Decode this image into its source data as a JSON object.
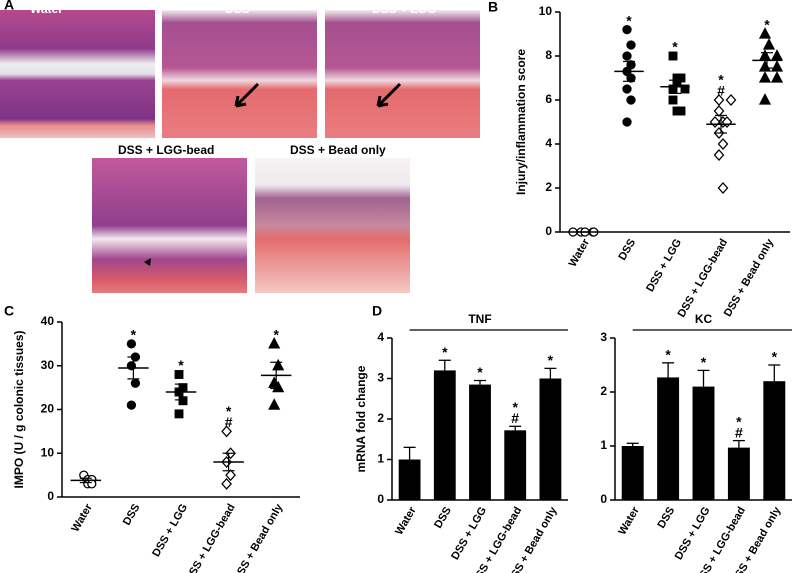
{
  "panel_labels": [
    "A",
    "B",
    "C",
    "D"
  ],
  "histology": [
    {
      "label": "Water"
    },
    {
      "label": "DSS"
    },
    {
      "label": "DSS + LGG"
    },
    {
      "label": "DSS + LGG-bead"
    },
    {
      "label": "DSS + Bead only"
    }
  ],
  "chart_data": [
    {
      "type": "dot",
      "ylabel": "Injury/inflammation score",
      "categories": [
        "Water",
        "DSS",
        "DSS + LGG",
        "DSS + LGG-bead",
        "DSS + Bead only"
      ],
      "ylim": [
        0,
        10
      ],
      "yticks": [
        0,
        2,
        4,
        6,
        8,
        10
      ],
      "color": "#000000",
      "groups": [
        {
          "marker": "circle",
          "filled": false,
          "points": [
            0,
            0,
            0,
            0,
            0
          ],
          "mean": 0,
          "error": 0,
          "annotations": []
        },
        {
          "marker": "circle",
          "filled": true,
          "points": [
            9.2,
            8.5,
            8.0,
            7.6,
            7.3,
            7.0,
            6.5,
            6.0,
            5.0
          ],
          "mean": 7.3,
          "error": 0.45,
          "annotations": [
            "*"
          ]
        },
        {
          "marker": "square",
          "filled": true,
          "points": [
            8.0,
            7.0,
            7.0,
            6.8,
            6.5,
            6.5,
            6.0,
            5.5,
            5.5
          ],
          "mean": 6.6,
          "error": 0.3,
          "annotations": [
            "*"
          ]
        },
        {
          "marker": "diamond",
          "filled": false,
          "points": [
            6.0,
            6.0,
            5.5,
            5.0,
            5.0,
            5.0,
            4.5,
            4.0,
            3.5,
            2.0
          ],
          "mean": 4.9,
          "error": 0.4,
          "annotations": [
            "*",
            "#"
          ]
        },
        {
          "marker": "triangle",
          "filled": true,
          "points": [
            9.0,
            8.5,
            8.0,
            8.0,
            7.5,
            7.5,
            7.0,
            7.0,
            6.0
          ],
          "mean": 7.8,
          "error": 0.35,
          "annotations": [
            "*"
          ]
        }
      ]
    },
    {
      "type": "dot",
      "ylabel": "IMPO (U / g colonic tissues)",
      "categories": [
        "Water",
        "DSS",
        "DSS + LGG",
        "DSS + LGG-bead",
        "DSS + Bead only"
      ],
      "ylim": [
        0,
        40
      ],
      "yticks": [
        0,
        10,
        20,
        30,
        40
      ],
      "color": "#000000",
      "groups": [
        {
          "marker": "circle",
          "filled": false,
          "points": [
            5,
            4,
            4,
            3,
            3
          ],
          "mean": 3.8,
          "error": 0.5,
          "annotations": []
        },
        {
          "marker": "circle",
          "filled": true,
          "points": [
            35,
            32,
            30,
            26,
            21
          ],
          "mean": 29.5,
          "error": 2.5,
          "annotations": [
            "*"
          ]
        },
        {
          "marker": "square",
          "filled": true,
          "points": [
            28,
            25,
            24,
            22,
            19
          ],
          "mean": 24,
          "error": 1.8,
          "annotations": [
            "*"
          ]
        },
        {
          "marker": "diamond",
          "filled": false,
          "points": [
            15,
            10,
            8,
            5,
            3
          ],
          "mean": 8,
          "error": 2,
          "annotations": [
            "*",
            "#"
          ]
        },
        {
          "marker": "triangle",
          "filled": true,
          "points": [
            35,
            30,
            26,
            25,
            21
          ],
          "mean": 27.8,
          "error": 3,
          "annotations": [
            "*"
          ]
        }
      ]
    },
    {
      "type": "bar",
      "title": "TNF",
      "ylabel": "mRNA fold change",
      "categories": [
        "Water",
        "DSS",
        "DSS + LGG",
        "DSS + LGG-bead",
        "DSS + Bead only"
      ],
      "values": [
        1.0,
        3.2,
        2.85,
        1.72,
        3.0
      ],
      "errors": [
        0.3,
        0.25,
        0.1,
        0.1,
        0.25
      ],
      "annotations": [
        [],
        [
          "*"
        ],
        [
          "*"
        ],
        [
          "*",
          "#"
        ],
        [
          "*"
        ]
      ],
      "ylim": [
        0,
        4
      ],
      "yticks": [
        0,
        1,
        2,
        3,
        4
      ],
      "color": "#000000"
    },
    {
      "type": "bar",
      "title": "KC",
      "categories": [
        "Water",
        "DSS",
        "DSS + LGG",
        "DSS + LGG-bead",
        "DSS + Bead only"
      ],
      "values": [
        1.0,
        2.27,
        2.1,
        0.97,
        2.2
      ],
      "errors": [
        0.05,
        0.27,
        0.3,
        0.13,
        0.3
      ],
      "annotations": [
        [],
        [
          "*"
        ],
        [
          "*"
        ],
        [
          "*",
          "#"
        ],
        [
          "*"
        ]
      ],
      "ylim": [
        0,
        3
      ],
      "yticks": [
        0,
        1,
        2,
        3
      ],
      "color": "#000000"
    }
  ]
}
